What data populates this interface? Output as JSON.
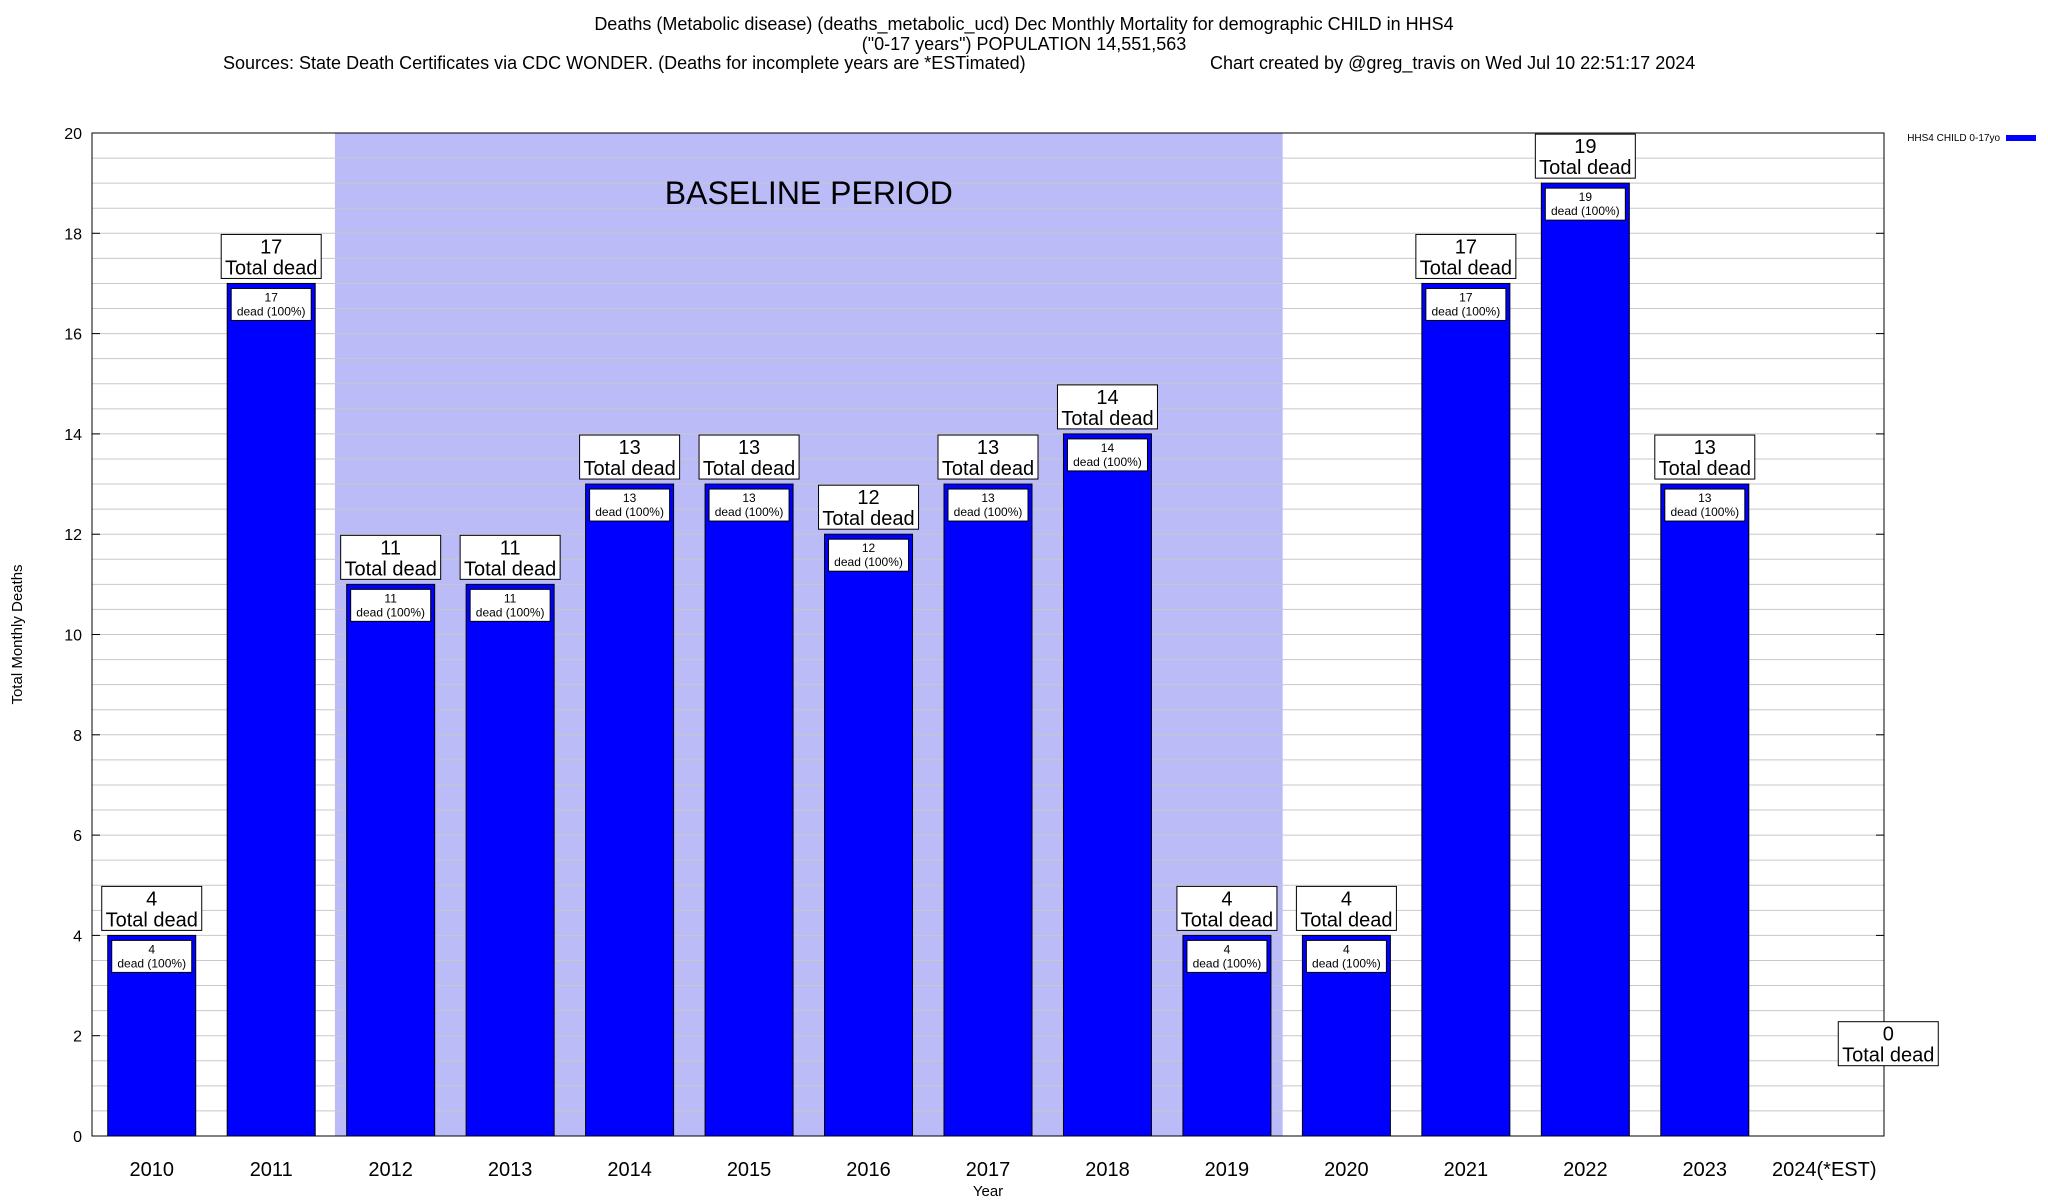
{
  "header": {
    "title_line1": "Deaths (Metabolic disease) (deaths_metabolic_ucd) Dec Monthly Mortality for demographic CHILD in HHS4",
    "title_line2": "(\"0-17 years\") POPULATION 14,551,563",
    "sources": "Sources: State Death Certificates via CDC WONDER. (Deaths for incomplete years are *ESTimated)",
    "credit": "Chart created by @greg_travis on Wed Jul 10 22:51:17 2024"
  },
  "chart_data": {
    "type": "bar",
    "xlabel": "Year",
    "ylabel": "Total Monthly Deaths",
    "ylim": [
      0,
      20
    ],
    "yticks": [
      0,
      2,
      4,
      6,
      8,
      10,
      12,
      14,
      16,
      18,
      20
    ],
    "grid": true,
    "categories": [
      "2010",
      "2011",
      "2012",
      "2013",
      "2014",
      "2015",
      "2016",
      "2017",
      "2018",
      "2019",
      "2020",
      "2021",
      "2022",
      "2023",
      "2024(*EST)"
    ],
    "series": [
      {
        "name": "HHS4 CHILD 0-17yo",
        "color": "#0000ff",
        "values": [
          4,
          17,
          11,
          11,
          13,
          13,
          12,
          13,
          14,
          4,
          4,
          17,
          19,
          13,
          0
        ]
      }
    ],
    "total_label_suffix": "Total dead",
    "bar_label_suffix": "dead (100%)",
    "legend": {
      "position": "top-right",
      "label": "HHS4 CHILD 0-17yo"
    },
    "baseline": {
      "label": "BASELINE PERIOD",
      "from": "2012",
      "to": "2019",
      "color": "#bbbbf8"
    }
  }
}
